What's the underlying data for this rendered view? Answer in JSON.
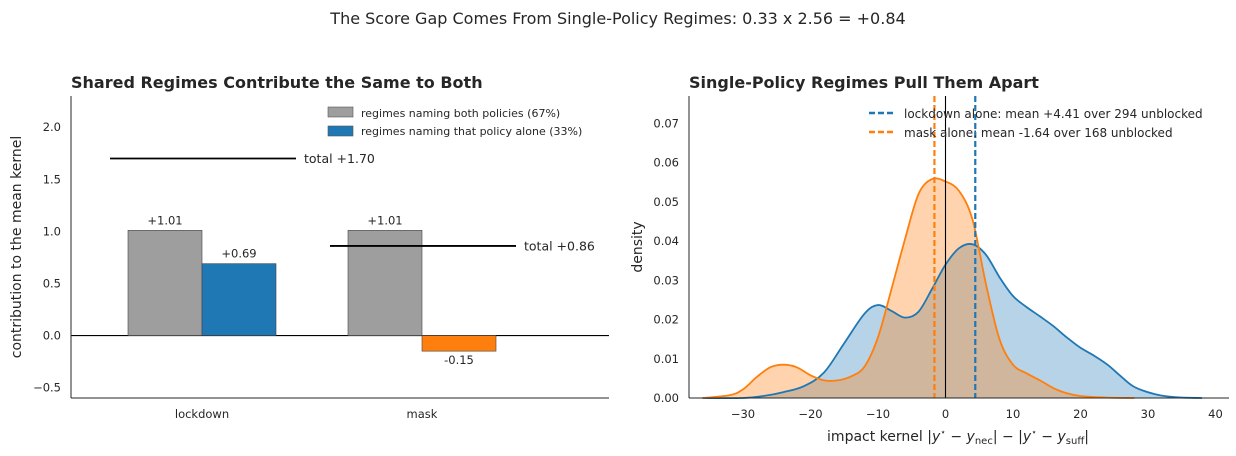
{
  "suptitle": "The Score Gap Comes From Single-Policy Regimes: 0.33 x 2.56 = +0.84",
  "colors": {
    "shared": "#9e9e9e",
    "lockdown": "#1f77b4",
    "mask": "#ff7f0e",
    "text": "#262626",
    "axis": "#262626",
    "zero_line": "#000000"
  },
  "chart_data": [
    {
      "type": "bar",
      "title": "Shared Regimes Contribute the Same to Both",
      "xlabel": "",
      "ylabel": "contribution to the mean kernel",
      "categories": [
        "lockdown",
        "mask"
      ],
      "series": [
        {
          "name": "regimes naming both policies (67%)",
          "values": [
            1.01,
            1.01
          ]
        },
        {
          "name": "regimes naming that policy alone (33%)",
          "values": [
            0.69,
            -0.15
          ]
        }
      ],
      "bar_labels": {
        "shared": [
          "+1.01",
          "+1.01"
        ],
        "alone": [
          "+0.69",
          "-0.15"
        ]
      },
      "totals": [
        1.7,
        0.86
      ],
      "total_labels": [
        "total +1.70",
        "total +0.86"
      ],
      "ylim": [
        -0.6,
        2.3
      ],
      "yticks": [
        -0.5,
        0.0,
        0.5,
        1.0,
        1.5,
        2.0
      ],
      "ytick_labels": [
        "−0.5",
        "0.0",
        "0.5",
        "1.0",
        "1.5",
        "2.0"
      ],
      "legend": "top-right",
      "grid": false
    },
    {
      "type": "area",
      "title": "Single-Policy Regimes Pull Them Apart",
      "xlabel": "impact kernel |y* − y_nec| − |y* − y_suff|",
      "ylabel": "density",
      "xlim": [
        -38,
        42
      ],
      "ylim": [
        0,
        0.077
      ],
      "xticks": [
        -30,
        -20,
        -10,
        0,
        10,
        20,
        30,
        40
      ],
      "xtick_labels": [
        "−30",
        "−20",
        "−10",
        "0",
        "10",
        "20",
        "30",
        "40"
      ],
      "yticks": [
        0,
        0.01,
        0.02,
        0.03,
        0.04,
        0.05,
        0.06,
        0.07
      ],
      "ytick_labels": [
        "0.00",
        "0.01",
        "0.02",
        "0.03",
        "0.04",
        "0.05",
        "0.06",
        "0.07"
      ],
      "series": [
        {
          "name": "lockdown alone",
          "mean": 4.41,
          "legend_label": "lockdown alone: mean +4.41 over 294 unblocked",
          "x": [
            -36,
            -30,
            -27,
            -24,
            -21,
            -18,
            -15,
            -12,
            -10,
            -8,
            -6,
            -4,
            -2,
            0,
            2,
            4,
            6,
            8,
            10,
            12,
            14,
            16,
            18,
            20,
            22,
            24,
            26,
            28,
            31,
            34,
            38
          ],
          "y": [
            0.0,
            0.0,
            0.0005,
            0.0015,
            0.003,
            0.0065,
            0.014,
            0.0215,
            0.0237,
            0.0222,
            0.0205,
            0.022,
            0.0278,
            0.034,
            0.0382,
            0.0392,
            0.0365,
            0.0308,
            0.026,
            0.0232,
            0.0208,
            0.0183,
            0.0154,
            0.0128,
            0.0108,
            0.0085,
            0.0055,
            0.0028,
            0.001,
            0.0002,
            0.0
          ]
        },
        {
          "name": "mask alone",
          "mean": -1.64,
          "legend_label": "mask alone: mean -1.64 over 168 unblocked",
          "x": [
            -36,
            -32,
            -30,
            -28,
            -26,
            -24,
            -22,
            -20,
            -18,
            -16,
            -14,
            -12,
            -10,
            -8,
            -6,
            -4,
            -2,
            0,
            2,
            4,
            6,
            8,
            10,
            12,
            14,
            16,
            18,
            20,
            24,
            28
          ],
          "y": [
            0.0,
            0.0007,
            0.0022,
            0.0053,
            0.0078,
            0.0085,
            0.0078,
            0.0058,
            0.0045,
            0.0045,
            0.0055,
            0.008,
            0.0155,
            0.0278,
            0.0405,
            0.052,
            0.0558,
            0.0552,
            0.0528,
            0.0455,
            0.029,
            0.015,
            0.0085,
            0.0063,
            0.0045,
            0.0025,
            0.0012,
            0.0005,
            0.0001,
            0.0
          ]
        }
      ],
      "vline_zero": 0,
      "legend": "top-right",
      "grid": false
    }
  ]
}
